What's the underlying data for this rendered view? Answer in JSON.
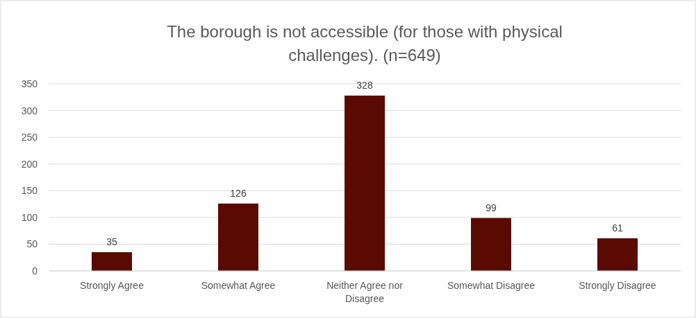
{
  "chart_data": {
    "type": "bar",
    "title": "The borough is not accessible (for those with physical challenges). (n=649)",
    "categories": [
      "Strongly Agree",
      "Somewhat Agree",
      "Neither Agree nor Disagree",
      "Somewhat Disagree",
      "Strongly Disagree"
    ],
    "values": [
      35,
      126,
      328,
      99,
      61
    ],
    "color": "#5b0a00",
    "ylim": [
      0,
      350
    ],
    "yticks": [
      0,
      50,
      100,
      150,
      200,
      250,
      300,
      350
    ],
    "grid": "y",
    "data_labels": true
  }
}
